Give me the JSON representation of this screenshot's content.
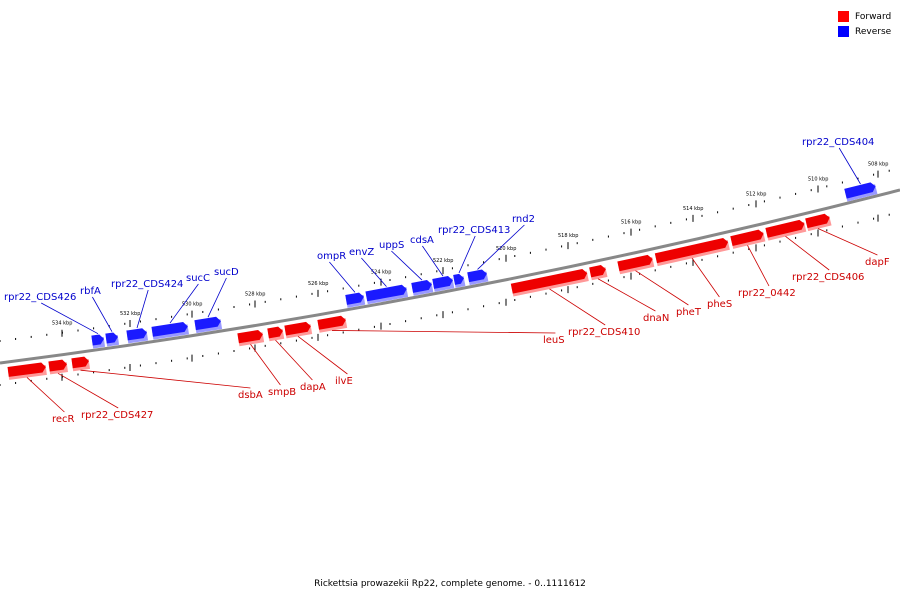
{
  "legend": {
    "forward_label": "Forward",
    "reverse_label": "Reverse",
    "forward_color": "#ff0000",
    "reverse_color": "#0000ff"
  },
  "caption": "Rickettsia prowazekii Rp22, complete genome. - 0..1111612",
  "colors": {
    "forward_label": "#cc0000",
    "reverse_label": "#0000cc",
    "backbone": "#808080"
  },
  "scale_labels": [
    "534 kbp",
    "532 kbp",
    "530 kbp",
    "528 kbp",
    "526 kbp",
    "524 kbp",
    "522 kbp",
    "520 kbp",
    "518 kbp",
    "516 kbp",
    "514 kbp",
    "512 kbp",
    "510 kbp",
    "508 kbp"
  ],
  "reverse_genes": [
    "rpr22_CDS426",
    "rbfA",
    "rpr22_CDS424",
    "sucC",
    "sucD",
    "ompR",
    "envZ",
    "uppS",
    "cdsA",
    "rpr22_CDS413",
    "rnd2",
    "rpr22_CDS404"
  ],
  "forward_genes": [
    "recR",
    "rpr22_CDS427",
    "dsbA",
    "smpB",
    "dapA",
    "ilvE",
    "leuS",
    "rpr22_CDS410",
    "dnaN",
    "pheT",
    "pheS",
    "rpr22_0442",
    "rpr22_CDS406",
    "dapF"
  ]
}
